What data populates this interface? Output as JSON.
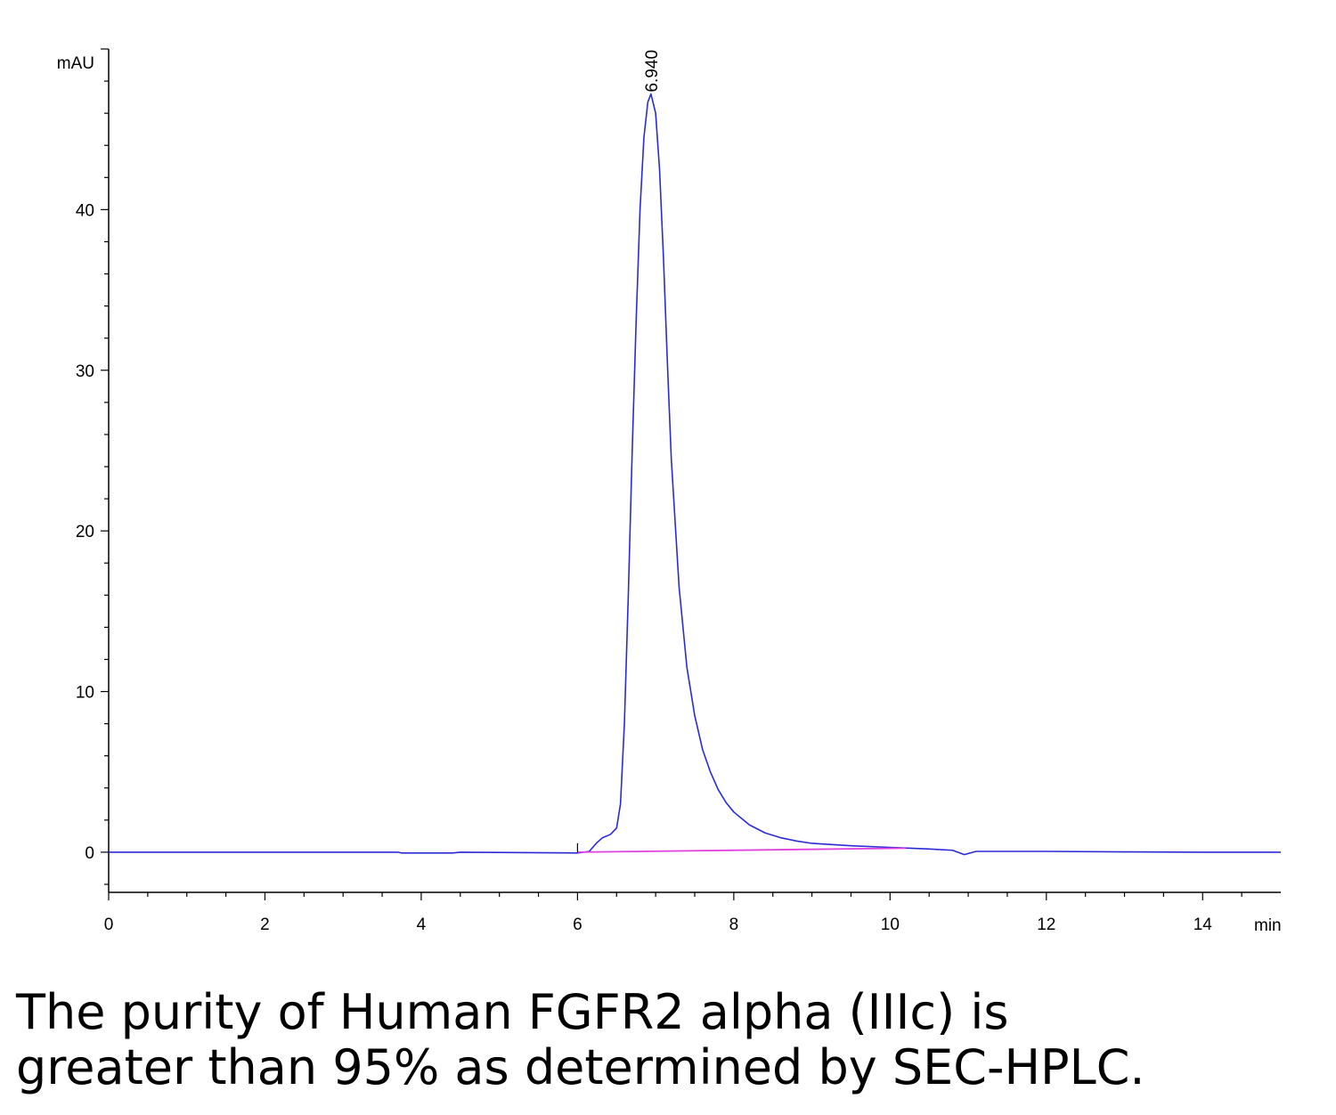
{
  "chart_data": {
    "type": "line",
    "y_unit": "mAU",
    "x_unit": "min",
    "xlim": [
      0,
      15
    ],
    "ylim": [
      -2.5,
      50
    ],
    "x_ticks": [
      "0",
      "2",
      "4",
      "6",
      "8",
      "10",
      "12",
      "14"
    ],
    "y_ticks": [
      "0",
      "10",
      "20",
      "30",
      "40"
    ],
    "peak": {
      "label": "6.940",
      "x": 6.94,
      "y": 47.2
    },
    "series": [
      {
        "color": "#2b2bd6",
        "points": [
          [
            0,
            0
          ],
          [
            3.7,
            0
          ],
          [
            3.75,
            -0.05
          ],
          [
            4.4,
            -0.05
          ],
          [
            4.5,
            0
          ],
          [
            6.0,
            -0.05
          ],
          [
            6.15,
            0.05
          ],
          [
            6.25,
            0.6
          ],
          [
            6.32,
            0.9
          ],
          [
            6.42,
            1.1
          ],
          [
            6.5,
            1.5
          ],
          [
            6.55,
            3.0
          ],
          [
            6.6,
            8.0
          ],
          [
            6.65,
            16.0
          ],
          [
            6.7,
            25.0
          ],
          [
            6.75,
            33.0
          ],
          [
            6.8,
            40.0
          ],
          [
            6.85,
            44.5
          ],
          [
            6.9,
            46.7
          ],
          [
            6.94,
            47.2
          ],
          [
            7.0,
            46.0
          ],
          [
            7.05,
            42.5
          ],
          [
            7.1,
            37.0
          ],
          [
            7.15,
            30.5
          ],
          [
            7.2,
            24.5
          ],
          [
            7.3,
            16.5
          ],
          [
            7.4,
            11.5
          ],
          [
            7.5,
            8.5
          ],
          [
            7.6,
            6.4
          ],
          [
            7.7,
            5.0
          ],
          [
            7.8,
            3.9
          ],
          [
            7.9,
            3.1
          ],
          [
            8.0,
            2.5
          ],
          [
            8.2,
            1.7
          ],
          [
            8.4,
            1.2
          ],
          [
            8.6,
            0.9
          ],
          [
            8.8,
            0.7
          ],
          [
            9.0,
            0.55
          ],
          [
            9.5,
            0.4
          ],
          [
            10.0,
            0.3
          ],
          [
            10.5,
            0.2
          ],
          [
            10.8,
            0.12
          ],
          [
            10.95,
            -0.15
          ],
          [
            11.1,
            0.05
          ],
          [
            11.5,
            0.05
          ],
          [
            12.0,
            0.05
          ],
          [
            13.0,
            0.02
          ],
          [
            14.0,
            0.0
          ],
          [
            15.0,
            0.0
          ]
        ]
      },
      {
        "color": "#e040e0",
        "points": [
          [
            6.0,
            0.0
          ],
          [
            10.2,
            0.25
          ]
        ]
      }
    ]
  },
  "caption": {
    "line1": "The purity of Human FGFR2 alpha (IIIc) is",
    "line2": "greater than 95% as determined by SEC-HPLC."
  }
}
